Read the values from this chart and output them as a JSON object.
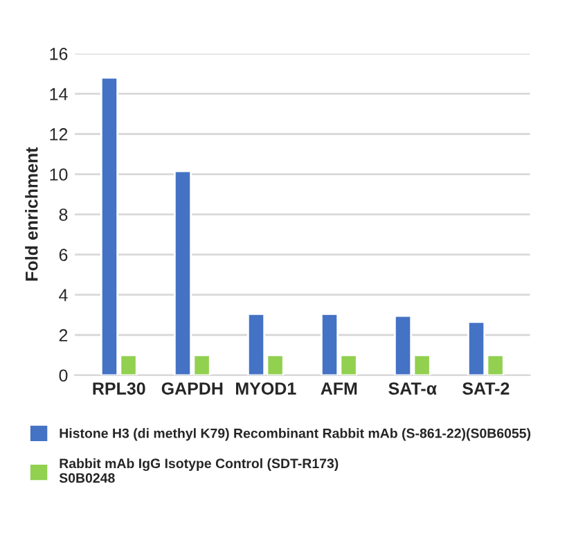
{
  "chart_data": {
    "type": "bar",
    "ylabel": "Fold enrichment",
    "categories": [
      "RPL30",
      "GAPDH",
      "MYOD1",
      "AFM",
      "SAT-α",
      "SAT-2"
    ],
    "series": [
      {
        "name": "Histone H3 (di methyl K79) Recombinant Rabbit mAb (S-861-22)(S0B6055)",
        "color": "#4472c4",
        "values": [
          14.8,
          10.15,
          3.05,
          3.05,
          2.95,
          2.65
        ]
      },
      {
        "name": "Rabbit mAb IgG Isotype Control (SDT-R173)\nS0B0248",
        "color": "#92d050",
        "values": [
          1.0,
          1.0,
          1.0,
          1.0,
          1.0,
          1.0
        ]
      }
    ],
    "ylim": [
      0,
      16
    ],
    "yticks": [
      0,
      2,
      4,
      6,
      8,
      10,
      12,
      14,
      16
    ],
    "grid": "y",
    "legend": "bottom"
  }
}
